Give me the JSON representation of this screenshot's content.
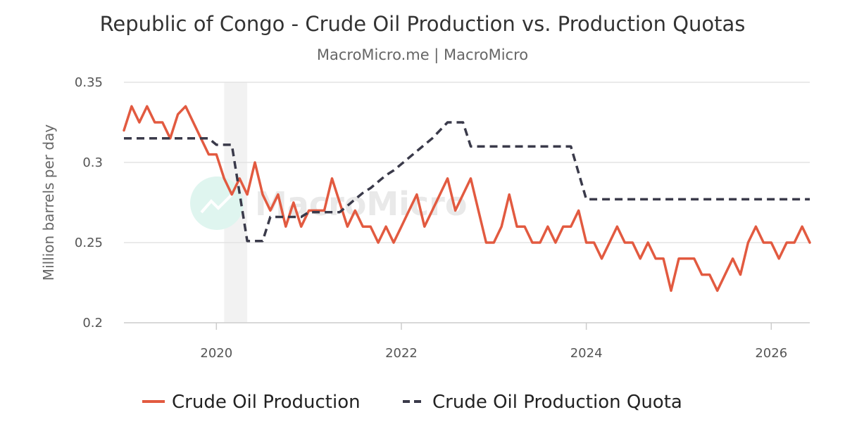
{
  "chart_data": {
    "type": "line",
    "title": "Republic of Congo - Crude Oil Production vs. Production Quotas",
    "subtitle": "MacroMicro.me | MacroMicro",
    "ylabel": "Million barrels per day",
    "xlabel": "",
    "ylim": [
      0.2,
      0.35
    ],
    "xlim": [
      "2019-01",
      "2026-06"
    ],
    "yticks": [
      {
        "value": 0.2,
        "label": "0.2"
      },
      {
        "value": 0.25,
        "label": "0.25"
      },
      {
        "value": 0.3,
        "label": "0.3"
      },
      {
        "value": 0.35,
        "label": "0.35"
      }
    ],
    "xticks": [
      {
        "value": "2020-01",
        "label": "2020"
      },
      {
        "value": "2022-01",
        "label": "2022"
      },
      {
        "value": "2024-01",
        "label": "2024"
      },
      {
        "value": "2026-01",
        "label": "2026"
      }
    ],
    "grid": true,
    "legend_position": "bottom",
    "shaded_period": {
      "start": "2020-02",
      "end": "2020-05",
      "color": "#f2f2f2"
    },
    "watermark": "MacroMicro",
    "series": [
      {
        "name": "Crude Oil Production",
        "color": "#e25a40",
        "dash": "solid",
        "points": [
          [
            "2019-01",
            0.32
          ],
          [
            "2019-02",
            0.335
          ],
          [
            "2019-03",
            0.325
          ],
          [
            "2019-04",
            0.335
          ],
          [
            "2019-05",
            0.325
          ],
          [
            "2019-06",
            0.325
          ],
          [
            "2019-07",
            0.315
          ],
          [
            "2019-08",
            0.33
          ],
          [
            "2019-09",
            0.335
          ],
          [
            "2019-10",
            0.325
          ],
          [
            "2019-11",
            0.315
          ],
          [
            "2019-12",
            0.305
          ],
          [
            "2020-01",
            0.305
          ],
          [
            "2020-02",
            0.29
          ],
          [
            "2020-03",
            0.28
          ],
          [
            "2020-04",
            0.29
          ],
          [
            "2020-05",
            0.28
          ],
          [
            "2020-06",
            0.3
          ],
          [
            "2020-07",
            0.28
          ],
          [
            "2020-08",
            0.27
          ],
          [
            "2020-09",
            0.28
          ],
          [
            "2020-10",
            0.26
          ],
          [
            "2020-11",
            0.275
          ],
          [
            "2020-12",
            0.26
          ],
          [
            "2021-01",
            0.27
          ],
          [
            "2021-02",
            0.27
          ],
          [
            "2021-03",
            0.27
          ],
          [
            "2021-04",
            0.29
          ],
          [
            "2021-05",
            0.275
          ],
          [
            "2021-06",
            0.26
          ],
          [
            "2021-07",
            0.27
          ],
          [
            "2021-08",
            0.26
          ],
          [
            "2021-09",
            0.26
          ],
          [
            "2021-10",
            0.25
          ],
          [
            "2021-11",
            0.26
          ],
          [
            "2021-12",
            0.25
          ],
          [
            "2022-01",
            0.26
          ],
          [
            "2022-02",
            0.27
          ],
          [
            "2022-03",
            0.28
          ],
          [
            "2022-04",
            0.26
          ],
          [
            "2022-05",
            0.27
          ],
          [
            "2022-06",
            0.28
          ],
          [
            "2022-07",
            0.29
          ],
          [
            "2022-08",
            0.27
          ],
          [
            "2022-09",
            0.28
          ],
          [
            "2022-10",
            0.29
          ],
          [
            "2022-11",
            0.27
          ],
          [
            "2022-12",
            0.25
          ],
          [
            "2023-01",
            0.25
          ],
          [
            "2023-02",
            0.26
          ],
          [
            "2023-03",
            0.28
          ],
          [
            "2023-04",
            0.26
          ],
          [
            "2023-05",
            0.26
          ],
          [
            "2023-06",
            0.25
          ],
          [
            "2023-07",
            0.25
          ],
          [
            "2023-08",
            0.26
          ],
          [
            "2023-09",
            0.25
          ],
          [
            "2023-10",
            0.26
          ],
          [
            "2023-11",
            0.26
          ],
          [
            "2023-12",
            0.27
          ],
          [
            "2024-01",
            0.25
          ],
          [
            "2024-02",
            0.25
          ],
          [
            "2024-03",
            0.24
          ],
          [
            "2024-04",
            0.25
          ],
          [
            "2024-05",
            0.26
          ],
          [
            "2024-06",
            0.25
          ],
          [
            "2024-07",
            0.25
          ],
          [
            "2024-08",
            0.24
          ],
          [
            "2024-09",
            0.25
          ],
          [
            "2024-10",
            0.24
          ],
          [
            "2024-11",
            0.24
          ],
          [
            "2024-12",
            0.22
          ],
          [
            "2025-01",
            0.24
          ],
          [
            "2025-02",
            0.24
          ],
          [
            "2025-03",
            0.24
          ],
          [
            "2025-04",
            0.23
          ],
          [
            "2025-05",
            0.23
          ],
          [
            "2025-06",
            0.22
          ],
          [
            "2025-07",
            0.23
          ],
          [
            "2025-08",
            0.24
          ],
          [
            "2025-09",
            0.23
          ],
          [
            "2025-10",
            0.25
          ],
          [
            "2025-11",
            0.26
          ],
          [
            "2025-12",
            0.25
          ],
          [
            "2026-01",
            0.25
          ],
          [
            "2026-02",
            0.24
          ],
          [
            "2026-03",
            0.25
          ],
          [
            "2026-04",
            0.25
          ],
          [
            "2026-05",
            0.26
          ],
          [
            "2026-06",
            0.25
          ]
        ]
      },
      {
        "name": "Crude Oil Production Quota",
        "color": "#3a3a4a",
        "dash": "dashed",
        "points": [
          [
            "2019-01",
            0.315
          ],
          [
            "2019-12",
            0.315
          ],
          [
            "2020-01",
            0.311
          ],
          [
            "2020-03",
            0.311
          ],
          [
            "2020-05",
            0.251
          ],
          [
            "2020-07",
            0.251
          ],
          [
            "2020-08",
            0.266
          ],
          [
            "2020-12",
            0.266
          ],
          [
            "2021-01",
            0.269
          ],
          [
            "2021-05",
            0.269
          ],
          [
            "2021-06",
            0.273
          ],
          [
            "2021-07",
            0.277
          ],
          [
            "2021-08",
            0.281
          ],
          [
            "2021-09",
            0.284
          ],
          [
            "2021-10",
            0.288
          ],
          [
            "2021-11",
            0.292
          ],
          [
            "2021-12",
            0.295
          ],
          [
            "2022-01",
            0.299
          ],
          [
            "2022-02",
            0.303
          ],
          [
            "2022-03",
            0.307
          ],
          [
            "2022-04",
            0.311
          ],
          [
            "2022-05",
            0.315
          ],
          [
            "2022-06",
            0.32
          ],
          [
            "2022-07",
            0.325
          ],
          [
            "2022-09",
            0.325
          ],
          [
            "2022-10",
            0.31
          ],
          [
            "2023-11",
            0.31
          ],
          [
            "2024-01",
            0.277
          ],
          [
            "2026-06",
            0.277
          ]
        ]
      }
    ]
  }
}
